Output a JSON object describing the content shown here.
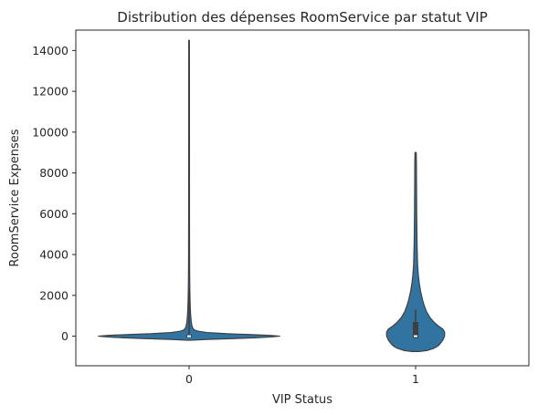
{
  "chart_data": {
    "type": "violin",
    "title": "Distribution des dépenses RoomService par statut VIP",
    "xlabel": "VIP Status",
    "ylabel": "RoomService Expenses",
    "categories": [
      "0",
      "1"
    ],
    "ylim": [
      -1450,
      15000
    ],
    "yticks": [
      0,
      2000,
      4000,
      6000,
      8000,
      10000,
      12000,
      14000
    ],
    "yticklabels": [
      "0",
      "2000",
      "4000",
      "6000",
      "8000",
      "10000",
      "12000",
      "14000"
    ],
    "grid": false,
    "legend": "none",
    "fill_color": "#3274a1",
    "edge_color": "#3f3f3f",
    "series": [
      {
        "category": "0",
        "max": 14500,
        "q1": 0,
        "median": 0,
        "q3": 40,
        "whisker_high": 2300,
        "density": [
          [
            -200,
            0.015
          ],
          [
            -160,
            0.2
          ],
          [
            -120,
            0.48
          ],
          [
            -80,
            0.72
          ],
          [
            -40,
            0.9
          ],
          [
            0,
            1.0
          ],
          [
            40,
            0.9
          ],
          [
            80,
            0.66
          ],
          [
            120,
            0.42
          ],
          [
            180,
            0.2
          ],
          [
            240,
            0.1
          ],
          [
            300,
            0.058
          ],
          [
            400,
            0.04
          ],
          [
            500,
            0.032
          ],
          [
            650,
            0.026
          ],
          [
            800,
            0.022
          ],
          [
            1000,
            0.018
          ],
          [
            1300,
            0.014
          ],
          [
            1700,
            0.011
          ],
          [
            2200,
            0.0085
          ],
          [
            3000,
            0.0065
          ],
          [
            4000,
            0.0052
          ],
          [
            6000,
            0.0045
          ],
          [
            9000,
            0.0042
          ],
          [
            12000,
            0.004
          ],
          [
            14500,
            0.0035
          ]
        ]
      },
      {
        "category": "1",
        "max": 9000,
        "q1": -50,
        "median": 0,
        "q3": 650,
        "whisker_high": 1300,
        "density": [
          [
            -750,
            0.05
          ],
          [
            -700,
            0.13
          ],
          [
            -600,
            0.2
          ],
          [
            -500,
            0.24
          ],
          [
            -400,
            0.265
          ],
          [
            -200,
            0.3
          ],
          [
            0,
            0.32
          ],
          [
            200,
            0.32
          ],
          [
            350,
            0.3
          ],
          [
            500,
            0.25
          ],
          [
            700,
            0.2
          ],
          [
            900,
            0.16
          ],
          [
            1200,
            0.12
          ],
          [
            1500,
            0.095
          ],
          [
            1800,
            0.075
          ],
          [
            2200,
            0.055
          ],
          [
            2600,
            0.04
          ],
          [
            3000,
            0.03
          ],
          [
            3500,
            0.022
          ],
          [
            4500,
            0.016
          ],
          [
            6000,
            0.012
          ],
          [
            7500,
            0.01
          ],
          [
            8500,
            0.009
          ],
          [
            9000,
            0.0065
          ]
        ]
      }
    ]
  }
}
